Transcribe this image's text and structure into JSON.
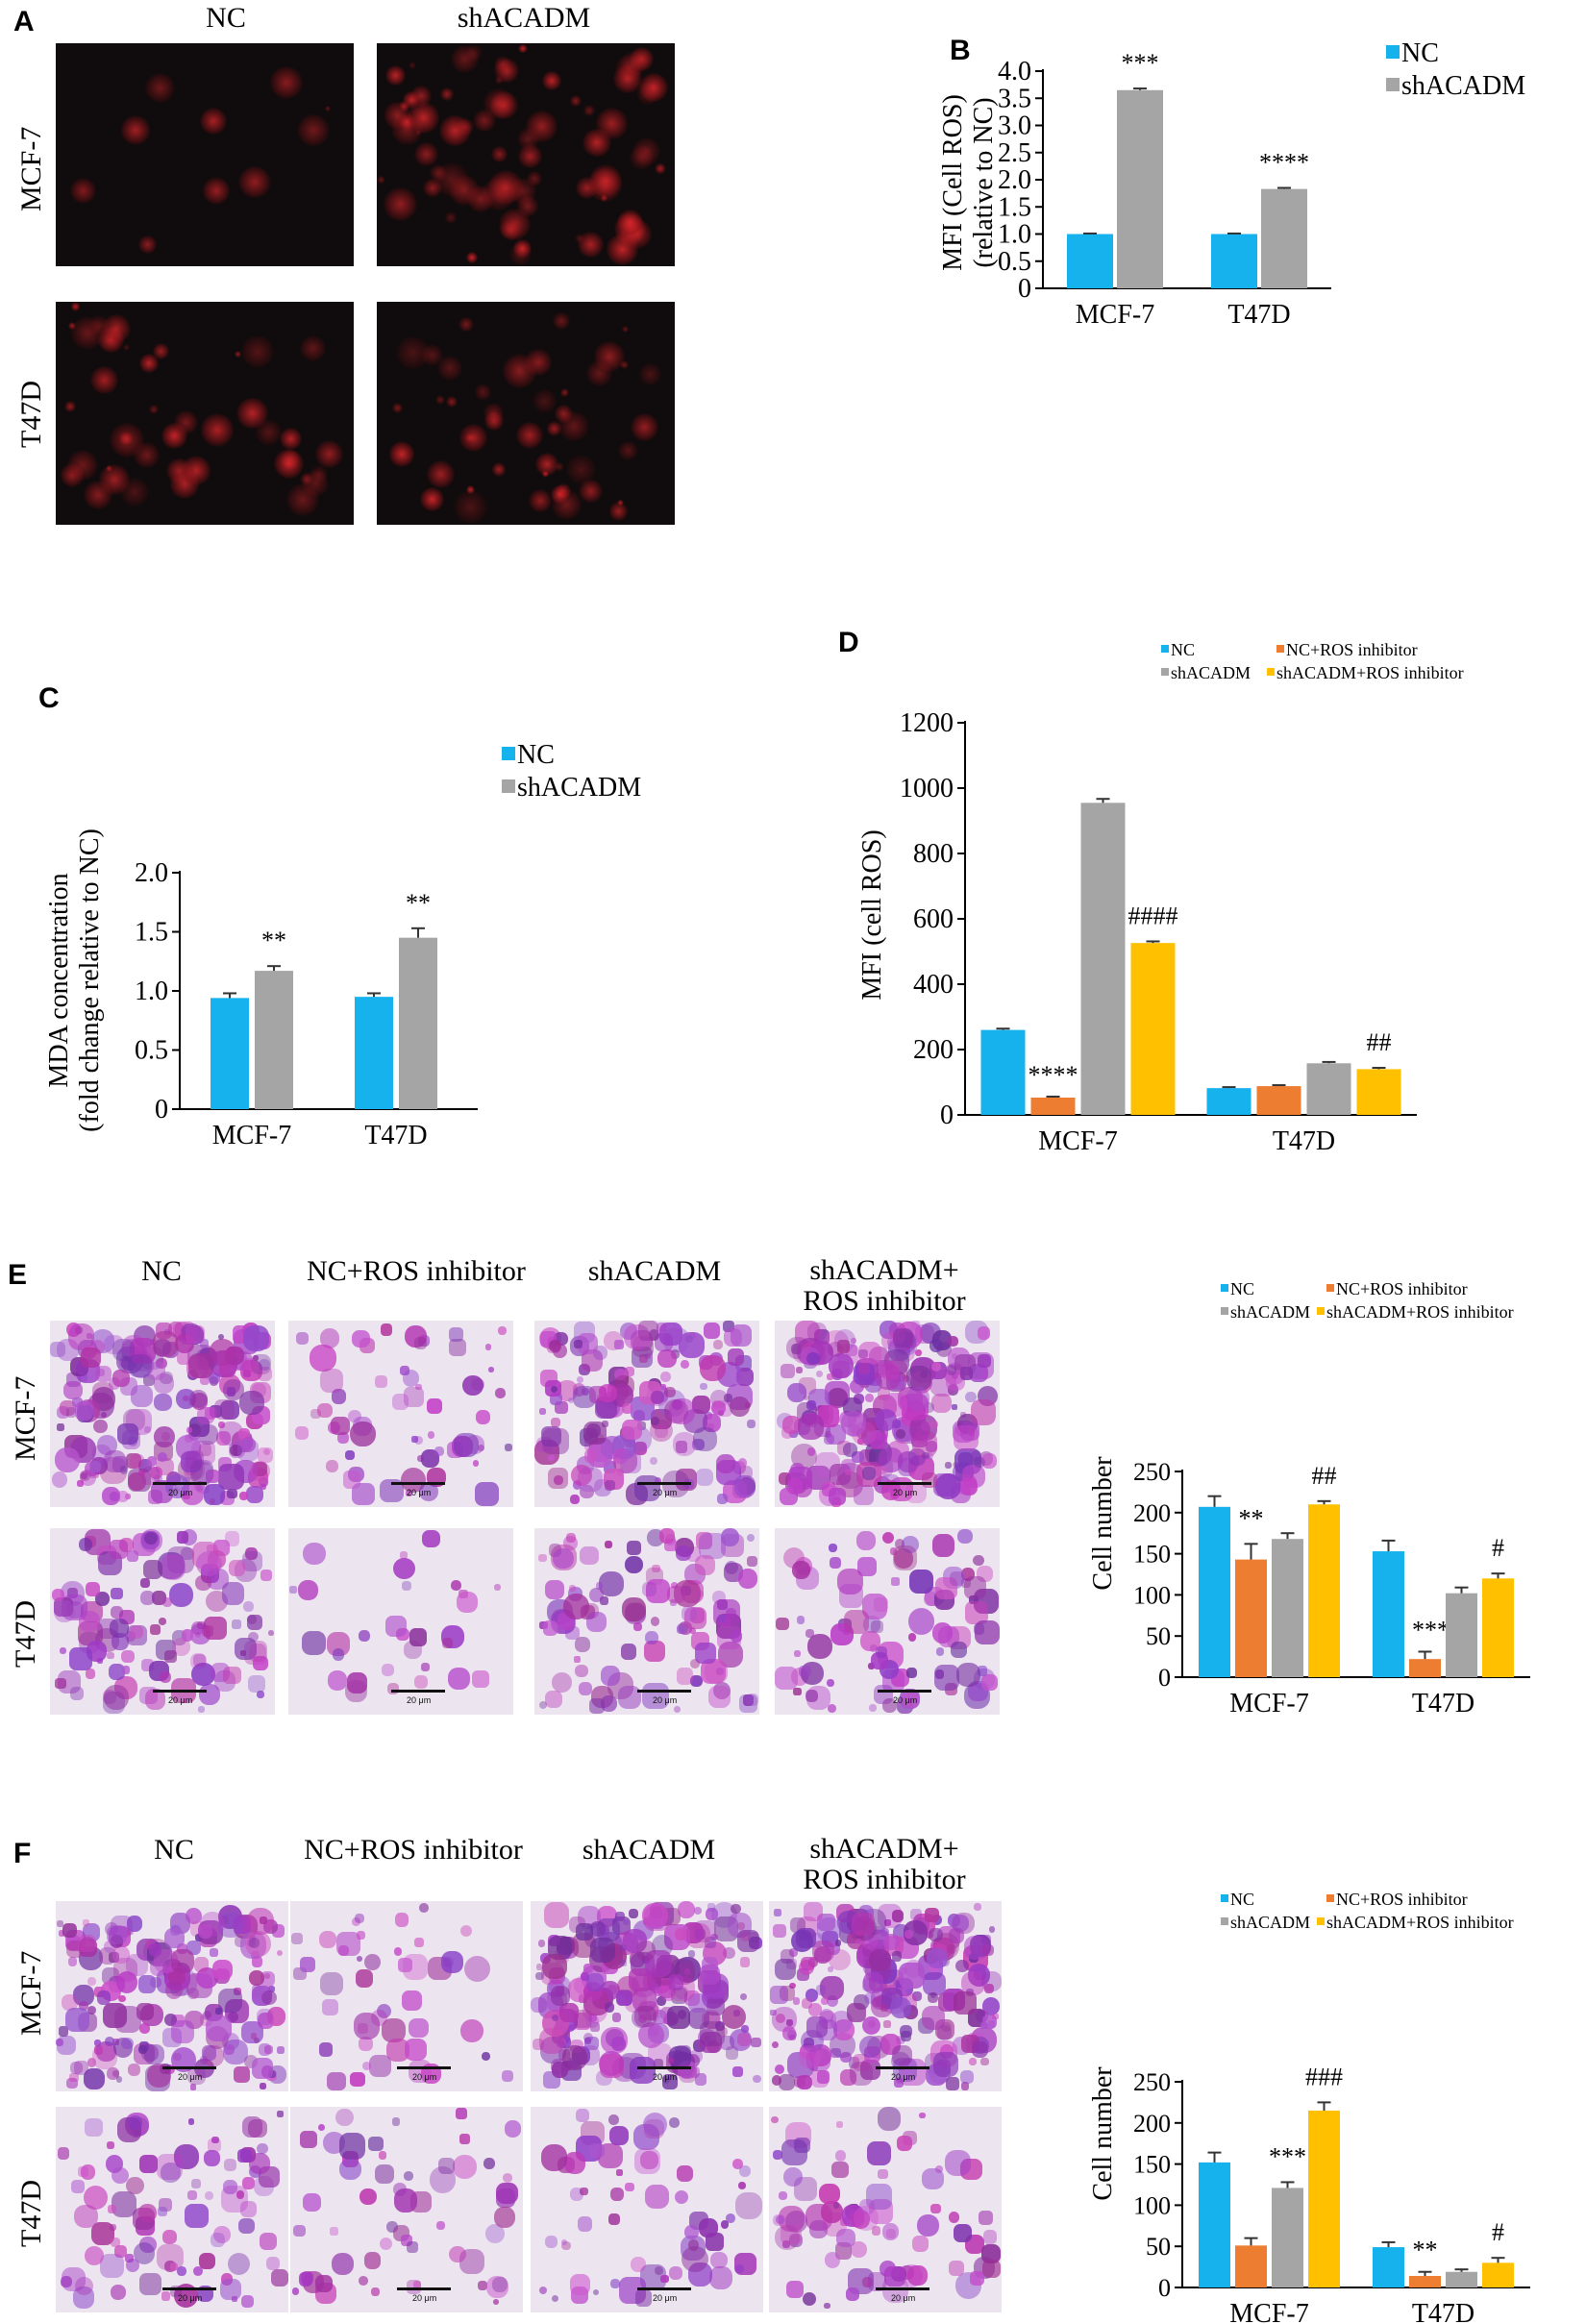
{
  "panels": {
    "A": {
      "letter": "A",
      "col_labels": [
        "NC",
        "shACADM"
      ],
      "row_labels": [
        "MCF-7",
        "T47D"
      ]
    },
    "E": {
      "letter": "E",
      "col_labels": [
        "NC",
        "NC+ROS inhibitor",
        "shACADM",
        "shACADM+\nROS inhibitor"
      ],
      "row_labels": [
        "MCF-7",
        "T47D"
      ],
      "scale_label": "20 μm"
    },
    "F": {
      "letter": "F",
      "col_labels": [
        "NC",
        "NC+ROS inhibitor",
        "shACADM",
        "shACADM+\nROS inhibitor"
      ],
      "row_labels": [
        "MCF-7",
        "T47D"
      ],
      "scale_label": "20 μm"
    }
  },
  "colors": {
    "NC": "#16b2ee",
    "NC+ROS inhibitor": "#ed7d31",
    "shACADM": "#a5a5a5",
    "shACADM+ROS inhibitor": "#ffc000",
    "fluorescence": "#d8262a",
    "stain": "#8a52b8"
  },
  "chart_data": [
    {
      "id": "B",
      "letter": "B",
      "type": "bar",
      "categories": [
        "MCF-7",
        "T47D"
      ],
      "series": [
        {
          "name": "NC",
          "values": [
            1.0,
            1.0
          ],
          "errors": [
            0.01,
            0.01
          ]
        },
        {
          "name": "shACADM",
          "values": [
            3.65,
            1.83
          ],
          "errors": [
            0.03,
            0.02
          ]
        }
      ],
      "annotations": [
        [
          "",
          "***"
        ],
        [
          "",
          "****"
        ]
      ],
      "ylabel_lines": [
        "MFI (Cell ROS)",
        "(relative to NC)"
      ],
      "yticks": [
        "0",
        "0.5",
        "1.0",
        "1.5",
        "2.0",
        "2.5",
        "3.0",
        "3.5",
        "4.0"
      ],
      "ylim": [
        0,
        4.0
      ],
      "legend": "top-right"
    },
    {
      "id": "C",
      "letter": "C",
      "type": "bar",
      "categories": [
        "MCF-7",
        "T47D"
      ],
      "series": [
        {
          "name": "NC",
          "values": [
            0.94,
            0.95
          ],
          "errors": [
            0.04,
            0.03
          ]
        },
        {
          "name": "shACADM",
          "values": [
            1.17,
            1.45
          ],
          "errors": [
            0.04,
            0.08
          ]
        }
      ],
      "annotations": [
        [
          "",
          "**"
        ],
        [
          "",
          "**"
        ]
      ],
      "ylabel_lines": [
        "MDA concentration",
        "(fold change relative to NC)"
      ],
      "yticks": [
        "0",
        "0.5",
        "1.0",
        "1.5",
        "2.0"
      ],
      "ylim": [
        0,
        2.0
      ],
      "legend": "top-right"
    },
    {
      "id": "D",
      "letter": "D",
      "type": "bar",
      "categories": [
        "MCF-7",
        "T47D"
      ],
      "series": [
        {
          "name": "NC",
          "values": [
            260,
            82
          ],
          "errors": [
            4,
            3
          ]
        },
        {
          "name": "NC+ROS inhibitor",
          "values": [
            53,
            88
          ],
          "errors": [
            3,
            3
          ]
        },
        {
          "name": "shACADM",
          "values": [
            955,
            158
          ],
          "errors": [
            12,
            4
          ]
        },
        {
          "name": "shACADM+ROS inhibitor",
          "values": [
            526,
            140
          ],
          "errors": [
            5,
            4
          ]
        }
      ],
      "annotations": [
        [
          "",
          "****",
          "",
          "####"
        ],
        [
          "",
          "",
          "",
          "##"
        ]
      ],
      "ylabel_lines": [
        "MFI (cell ROS)"
      ],
      "yticks": [
        "0",
        "200",
        "400",
        "600",
        "800",
        "1000",
        "1200"
      ],
      "ylim": [
        0,
        1200
      ],
      "legend": "top"
    },
    {
      "id": "E",
      "type": "bar",
      "categories": [
        "MCF-7",
        "T47D"
      ],
      "series": [
        {
          "name": "NC",
          "values": [
            207,
            153
          ],
          "errors": [
            13,
            13
          ]
        },
        {
          "name": "NC+ROS inhibitor",
          "values": [
            143,
            22
          ],
          "errors": [
            19,
            9
          ]
        },
        {
          "name": "shACADM",
          "values": [
            168,
            102
          ],
          "errors": [
            7,
            7
          ]
        },
        {
          "name": "shACADM+ROS inhibitor",
          "values": [
            210,
            120
          ],
          "errors": [
            4,
            6
          ]
        }
      ],
      "annotations": [
        [
          "",
          "**",
          "",
          "##"
        ],
        [
          "",
          "***",
          "",
          "#"
        ]
      ],
      "ylabel_lines": [
        "Cell number"
      ],
      "yticks": [
        "0",
        "50",
        "100",
        "150",
        "200",
        "250"
      ],
      "ylim": [
        0,
        250
      ],
      "legend": "top"
    },
    {
      "id": "F",
      "type": "bar",
      "categories": [
        "MCF-7",
        "T47D"
      ],
      "series": [
        {
          "name": "NC",
          "values": [
            152,
            49
          ],
          "errors": [
            12,
            6
          ]
        },
        {
          "name": "NC+ROS inhibitor",
          "values": [
            51,
            14
          ],
          "errors": [
            9,
            5
          ]
        },
        {
          "name": "shACADM",
          "values": [
            121,
            19
          ],
          "errors": [
            7,
            3
          ]
        },
        {
          "name": "shACADM+ROS inhibitor",
          "values": [
            215,
            30
          ],
          "errors": [
            10,
            6
          ]
        }
      ],
      "annotations": [
        [
          "",
          "",
          "***",
          "###"
        ],
        [
          "",
          "**",
          "",
          "#"
        ]
      ],
      "ylabel_lines": [
        "Cell number"
      ],
      "yticks": [
        "0",
        "50",
        "100",
        "150",
        "200",
        "250"
      ],
      "ylim": [
        0,
        250
      ],
      "legend": "top"
    }
  ]
}
